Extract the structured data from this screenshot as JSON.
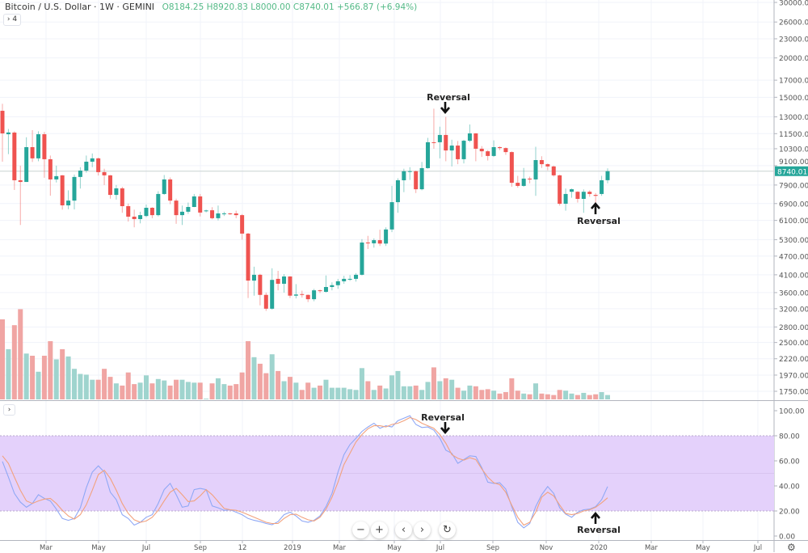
{
  "header": {
    "title": "Bitcoin / U.S. Dollar · 1W · GEMINI",
    "open": "O8184.25",
    "high": "H8920.83",
    "low": "L8000.00",
    "close": "C8740.01",
    "change": "+566.87 (+6.94%)",
    "legend_toggle": "› 4"
  },
  "stoch_toggle": "›",
  "colors": {
    "up": "#26a69a",
    "down": "#ef5350",
    "vol_up": "#9fd4ce",
    "vol_down": "#f0a5a3",
    "k_line": "#8fa8f5",
    "d_line": "#f2a27e",
    "band": "#e4d1fb"
  },
  "nav_buttons": [
    {
      "label": "−",
      "icon": "zoom-out-icon"
    },
    {
      "label": "+",
      "icon": "zoom-in-icon"
    },
    {
      "label": "‹",
      "icon": "scroll-left-icon"
    },
    {
      "label": "›",
      "icon": "scroll-right-icon"
    },
    {
      "label": "↻",
      "icon": "reset-icon"
    }
  ],
  "settings_icon": "gear-icon",
  "chart_data": [
    {
      "type": "candlestick",
      "interval": "1W",
      "yscale": "log",
      "ylim": [
        1750,
        30000
      ],
      "y_ticks": [
        "30000.00",
        "26000.00",
        "23000.00",
        "20000.00",
        "17000.00",
        "15000.00",
        "13000.00",
        "11500.00",
        "10300.00",
        "9100.00",
        "7900.00",
        "6900.00",
        "6100.00",
        "5300.00",
        "4700.00",
        "4100.00",
        "3600.00",
        "3200.00",
        "2800.00",
        "2500.00",
        "2220.00",
        "1970.00",
        "1750.00"
      ],
      "last_price_label": "8740.01",
      "last_price": 8740.01,
      "x_ticks": [
        "Mar",
        "May",
        "Jul",
        "Sep",
        "12",
        "2019",
        "Mar",
        "May",
        "Jul",
        "Sep",
        "Nov",
        "2020",
        "Mar",
        "May",
        "Jul"
      ],
      "ohlc": [
        [
          13590,
          14300,
          9370,
          11520
        ],
        [
          11450,
          11900,
          9900,
          11600
        ],
        [
          11590,
          11700,
          7620,
          8180
        ],
        [
          8180,
          9100,
          5900,
          8080
        ],
        [
          8080,
          11200,
          8080,
          10420
        ],
        [
          10420,
          11800,
          9350,
          9600
        ],
        [
          9600,
          11700,
          9400,
          11450
        ],
        [
          11450,
          11650,
          8330,
          9540
        ],
        [
          9540,
          9800,
          7310,
          8230
        ],
        [
          8230,
          9100,
          8050,
          8430
        ],
        [
          8480,
          8500,
          6600,
          6810
        ],
        [
          6810,
          7600,
          6620,
          7050
        ],
        [
          7050,
          8530,
          6610,
          8380
        ],
        [
          8380,
          9000,
          7700,
          8780
        ],
        [
          8780,
          9800,
          8650,
          9370
        ],
        [
          9370,
          9950,
          9000,
          9600
        ],
        [
          9600,
          9650,
          8470,
          8680
        ],
        [
          8680,
          8900,
          7900,
          8480
        ],
        [
          8480,
          8500,
          7150,
          7350
        ],
        [
          7350,
          7900,
          7100,
          7710
        ],
        [
          7710,
          7800,
          6450,
          6770
        ],
        [
          6770,
          6900,
          6050,
          6270
        ],
        [
          6270,
          6600,
          5800,
          6160
        ],
        [
          6160,
          6500,
          5970,
          6340
        ],
        [
          6300,
          6850,
          6250,
          6690
        ],
        [
          6690,
          6720,
          6200,
          6340
        ],
        [
          6340,
          7550,
          6280,
          7400
        ],
        [
          7400,
          8500,
          7350,
          8230
        ],
        [
          8230,
          8350,
          6870,
          7050
        ],
        [
          7050,
          7150,
          5950,
          6340
        ],
        [
          6340,
          6800,
          5900,
          6500
        ],
        [
          6500,
          6950,
          6400,
          6730
        ],
        [
          6730,
          7400,
          6720,
          7270
        ],
        [
          7270,
          7400,
          6280,
          6460
        ],
        [
          6530,
          6600,
          6470,
          6560
        ],
        [
          6570,
          6720,
          6150,
          6200
        ],
        [
          6200,
          6800,
          6100,
          6420
        ],
        [
          6400,
          6500,
          6300,
          6420
        ],
        [
          6420,
          6450,
          6350,
          6400
        ],
        [
          6420,
          6550,
          6200,
          6340
        ],
        [
          6340,
          6390,
          5300,
          5540
        ],
        [
          5540,
          5570,
          3460,
          3930
        ],
        [
          3930,
          4350,
          3520,
          4100
        ],
        [
          4100,
          4130,
          3280,
          3540
        ],
        [
          3540,
          3600,
          3150,
          3200
        ],
        [
          3200,
          4300,
          3180,
          3950
        ],
        [
          3980,
          4220,
          3660,
          3840
        ],
        [
          3840,
          4120,
          3600,
          4050
        ],
        [
          4050,
          4060,
          3460,
          3520
        ],
        [
          3520,
          3830,
          3450,
          3550
        ],
        [
          3560,
          3650,
          3470,
          3540
        ],
        [
          3540,
          3550,
          3360,
          3430
        ],
        [
          3430,
          3700,
          3380,
          3660
        ],
        [
          3660,
          3680,
          3590,
          3640
        ],
        [
          3620,
          4080,
          3600,
          3750
        ],
        [
          3750,
          3880,
          3660,
          3800
        ],
        [
          3800,
          3980,
          3700,
          3910
        ],
        [
          3910,
          4070,
          3840,
          3980
        ],
        [
          3960,
          4090,
          3920,
          3980
        ],
        [
          3980,
          4150,
          3900,
          4100
        ],
        [
          4100,
          5320,
          4080,
          5190
        ],
        [
          5190,
          5450,
          4950,
          5160
        ],
        [
          5160,
          5350,
          5000,
          5280
        ],
        [
          5280,
          5700,
          5060,
          5150
        ],
        [
          5150,
          5800,
          5060,
          5710
        ],
        [
          5710,
          7850,
          5600,
          6970
        ],
        [
          6970,
          8300,
          6450,
          8180
        ],
        [
          8180,
          8900,
          7500,
          8740
        ],
        [
          8740,
          9000,
          8200,
          8745
        ],
        [
          8740,
          8780,
          7450,
          7660
        ],
        [
          7660,
          9350,
          7600,
          8940
        ],
        [
          8940,
          11150,
          8900,
          10800
        ],
        [
          10800,
          13800,
          10300,
          10780
        ],
        [
          10800,
          12100,
          9600,
          11390
        ],
        [
          11390,
          13000,
          9400,
          10170
        ],
        [
          10170,
          11000,
          9050,
          10540
        ],
        [
          10540,
          10900,
          9200,
          9540
        ],
        [
          9540,
          11000,
          9250,
          10920
        ],
        [
          10920,
          12300,
          10800,
          11520
        ],
        [
          11520,
          11550,
          9400,
          10300
        ],
        [
          10300,
          10500,
          9700,
          10110
        ],
        [
          10110,
          10200,
          9450,
          9770
        ],
        [
          9770,
          10950,
          9700,
          10420
        ],
        [
          10420,
          10480,
          10200,
          10350
        ],
        [
          10350,
          10400,
          9850,
          10050
        ],
        [
          10050,
          10100,
          7800,
          8030
        ],
        [
          8030,
          8450,
          7750,
          7850
        ],
        [
          7850,
          8950,
          7800,
          8280
        ],
        [
          8280,
          8400,
          8000,
          8230
        ],
        [
          8230,
          10450,
          7300,
          9480
        ],
        [
          9480,
          9750,
          8950,
          9200
        ],
        [
          9200,
          9250,
          8800,
          9050
        ],
        [
          9050,
          9100,
          8400,
          8480
        ],
        [
          8480,
          8520,
          6800,
          6890
        ],
        [
          6890,
          7700,
          6550,
          7400
        ],
        [
          7520,
          7700,
          7200,
          7660
        ],
        [
          7520,
          7550,
          6950,
          7140
        ],
        [
          7140,
          7650,
          6450,
          7520
        ],
        [
          7520,
          7600,
          7250,
          7400
        ],
        [
          7350,
          7450,
          6900,
          7300
        ],
        [
          7400,
          8450,
          7300,
          8180
        ],
        [
          8184.25,
          8920.83,
          8000,
          8740.01
        ]
      ],
      "volume": [
        110,
        69,
        102,
        124,
        63,
        60,
        38,
        60,
        80,
        55,
        69,
        59,
        42,
        35,
        34,
        27,
        27,
        42,
        31,
        22,
        19,
        37,
        21,
        23,
        33,
        22,
        28,
        26,
        19,
        27,
        27,
        24,
        23,
        23,
        1,
        22,
        29,
        21,
        19,
        21,
        37,
        80,
        58,
        49,
        36,
        62,
        39,
        25,
        31,
        23,
        13,
        23,
        16,
        19,
        27,
        16,
        16,
        16,
        14,
        13,
        43,
        25,
        13,
        19,
        15,
        33,
        39,
        18,
        18,
        19,
        13,
        24,
        44,
        25,
        29,
        27,
        16,
        12,
        19,
        18,
        13,
        14,
        12,
        8,
        10,
        29,
        12,
        8,
        7,
        22,
        8,
        7,
        6,
        13,
        12,
        8,
        6,
        9,
        6,
        7,
        10,
        6
      ],
      "annotations": [
        {
          "text": "Reversal",
          "arrow": "down",
          "candle": 74
        },
        {
          "text": "Reversal",
          "arrow": "up",
          "candle": 99
        }
      ]
    },
    {
      "type": "line",
      "indicator": "stochastic",
      "ylim": [
        0,
        100
      ],
      "y_ticks": [
        "100.00",
        "80.00",
        "60.00",
        "40.00",
        "20.00",
        "0.00"
      ],
      "band": [
        20,
        80
      ],
      "series": [
        {
          "values": [
            59.5,
            47,
            34,
            27,
            23,
            26,
            33,
            30,
            28,
            21.5,
            14,
            12.5,
            14,
            22.5,
            38.5,
            51,
            56,
            51,
            35,
            29,
            17,
            14,
            8.7,
            11,
            15,
            17,
            26,
            37,
            42,
            33,
            23,
            24,
            37,
            38,
            37,
            24,
            22.5,
            20.5,
            21,
            19,
            17,
            14,
            12.5,
            11.5,
            10,
            9,
            11.5,
            17,
            19,
            16,
            12,
            11,
            12.5,
            16,
            23.5,
            34,
            51,
            65,
            73,
            78,
            83.5,
            87,
            90,
            86,
            88,
            87,
            92,
            94,
            96,
            89,
            86.6,
            87,
            84.5,
            78,
            68.5,
            66,
            58,
            61,
            64,
            63.5,
            54.5,
            43,
            42,
            42.5,
            37.5,
            23.5,
            11,
            6.5,
            10,
            23.5,
            33,
            39.5,
            34,
            22.5,
            17.5,
            15,
            19,
            21,
            21.5,
            23.5,
            29,
            39.5
          ]
        },
        {
          "values": [
            64,
            58,
            47,
            36.5,
            28,
            26,
            28,
            29.5,
            30,
            26,
            20.5,
            16,
            13.5,
            17,
            25,
            36.5,
            49,
            52.5,
            46,
            36.5,
            26,
            18,
            13,
            11,
            12,
            15,
            20.5,
            28,
            35,
            38,
            33,
            27.5,
            28,
            32,
            37,
            33,
            27.5,
            22,
            21,
            20.5,
            19,
            17,
            15,
            13,
            11,
            10,
            10,
            14,
            17,
            17.5,
            15,
            13,
            12,
            15,
            21.5,
            31,
            43,
            57,
            66,
            75,
            81,
            85.6,
            88,
            88,
            87,
            89,
            90,
            92,
            94.5,
            93,
            90,
            88,
            86,
            81,
            74,
            65,
            62,
            60.5,
            62.5,
            61,
            53.5,
            47,
            42.5,
            41,
            35,
            24.7,
            15,
            8.7,
            11,
            19,
            31,
            35,
            32,
            24.7,
            18,
            17,
            18,
            20,
            21,
            23,
            26.5,
            30.5
          ]
        }
      ],
      "annotations": [
        {
          "text": "Reversal",
          "arrow": "down",
          "candle": 74
        },
        {
          "text": "Reversal",
          "arrow": "up",
          "candle": 99
        }
      ]
    }
  ]
}
